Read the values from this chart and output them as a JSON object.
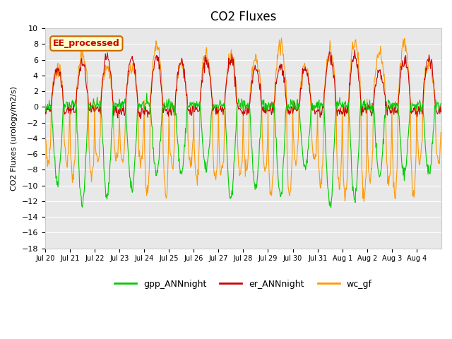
{
  "title": "CO2 Fluxes",
  "ylabel": "CO2 Fluxes (urology/m2/s)",
  "ylim": [
    -18,
    10
  ],
  "yticks": [
    -18,
    -16,
    -14,
    -12,
    -10,
    -8,
    -6,
    -4,
    -2,
    0,
    2,
    4,
    6,
    8,
    10
  ],
  "bg_color": "#e8e8e8",
  "gpp_color": "#00cc00",
  "er_color": "#cc0000",
  "wc_color": "#ff9900",
  "legend_items": [
    "gpp_ANNnight",
    "er_ANNnight",
    "wc_gf"
  ],
  "annotation_text": "EE_processed",
  "annotation_box_color": "#ffffcc",
  "annotation_box_edge": "#cc6600",
  "n_points_per_day": 48,
  "n_days": 16,
  "xtick_labels": [
    "Jul 20",
    "Jul 21",
    "Jul 22",
    "Jul 23",
    "Jul 24",
    "Jul 25",
    "Jul 26",
    "Jul 27",
    "Jul 28",
    "Jul 29",
    "Jul 30",
    "Jul 31",
    "Aug 1",
    "Aug 2",
    "Aug 3",
    "Aug 4"
  ],
  "gpp_day_amplitude": -13,
  "gpp_night_base": 0.3,
  "er_day_amplitude": 6,
  "er_night_base": -0.5,
  "wc_day_amplitude": 7,
  "wc_night_base": -12
}
